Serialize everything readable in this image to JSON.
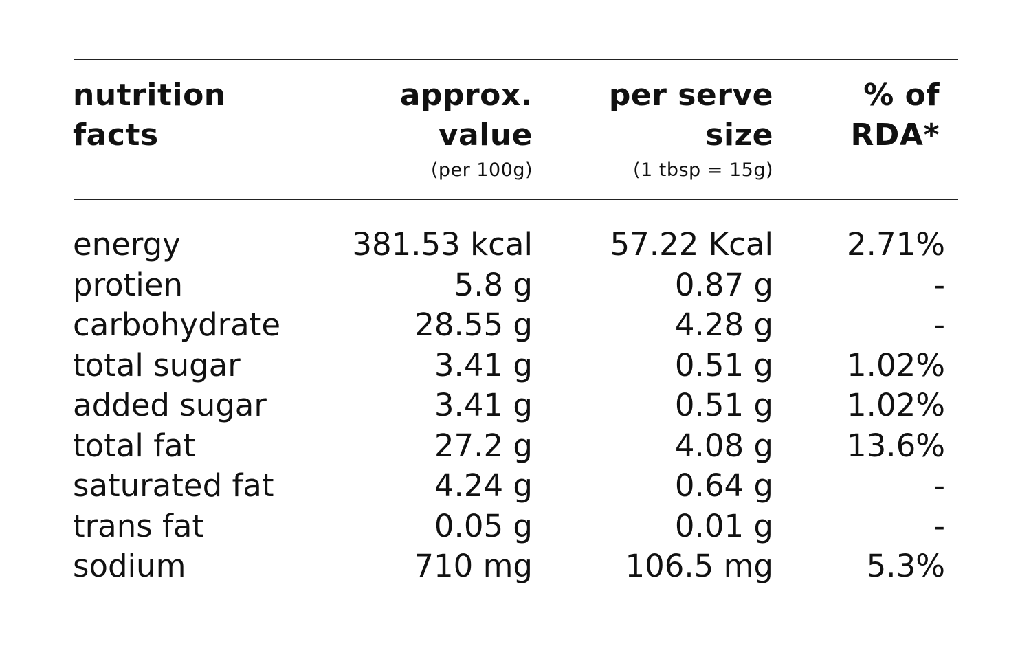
{
  "header": {
    "col1": [
      "nutrition",
      "facts"
    ],
    "col2": [
      "approx.",
      "value"
    ],
    "col2_sub": "(per 100g)",
    "col3": [
      "per serve",
      "size"
    ],
    "col3_sub": "(1 tbsp = 15g)",
    "col4": [
      "% of",
      "RDA*"
    ]
  },
  "rows": [
    {
      "name": "energy",
      "value": "381.53 kcal",
      "serve": "57.22 Kcal",
      "rda": "2.71%"
    },
    {
      "name": "protien",
      "value": "5.8 g",
      "serve": "0.87 g",
      "rda": "-"
    },
    {
      "name": "carbohydrate",
      "value": "28.55 g",
      "serve": "4.28 g",
      "rda": "-"
    },
    {
      "name": "total sugar",
      "value": "3.41 g",
      "serve": "0.51 g",
      "rda": "1.02%"
    },
    {
      "name": "added sugar",
      "value": "3.41 g",
      "serve": "0.51 g",
      "rda": "1.02%"
    },
    {
      "name": "total fat",
      "value": "27.2 g",
      "serve": "4.08 g",
      "rda": "13.6%"
    },
    {
      "name": "saturated fat",
      "value": "4.24 g",
      "serve": "0.64 g",
      "rda": "-"
    },
    {
      "name": "trans fat",
      "value": "0.05 g",
      "serve": "0.01 g",
      "rda": "-"
    },
    {
      "name": "sodium",
      "value": "710 mg",
      "serve": "106.5 mg",
      "rda": "5.3%"
    }
  ]
}
